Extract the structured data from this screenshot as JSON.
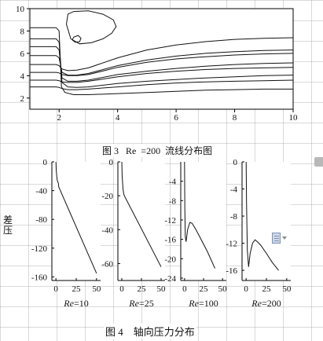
{
  "fig3": {
    "chart_data": {
      "type": "line",
      "title": "",
      "xlim": [
        1,
        10
      ],
      "ylim": [
        1,
        10
      ],
      "x_ticks": [
        "2",
        "4",
        "6",
        "8",
        "10"
      ],
      "y_ticks": [
        "2",
        "4",
        "6",
        "8",
        "10"
      ],
      "series": [
        {
          "x": [
            1.0,
            1.9,
            2.0,
            2.08,
            2.2,
            2.5,
            3.0,
            4.0,
            5.0,
            6.0,
            7.0,
            8.0,
            9.0,
            10.0
          ],
          "y": [
            8.3,
            8.3,
            8.0,
            3.0,
            2.5,
            2.3,
            2.3,
            2.4,
            2.5,
            2.6,
            2.7,
            2.75,
            2.8,
            2.8
          ]
        },
        {
          "x": [
            1.0,
            1.9,
            2.0,
            2.1,
            2.3,
            2.6,
            3.0,
            4.0,
            5.0,
            6.0,
            7.0,
            8.0,
            9.0,
            10.0
          ],
          "y": [
            7.3,
            7.3,
            7.0,
            3.4,
            3.0,
            2.95,
            3.0,
            3.3,
            3.5,
            3.65,
            3.8,
            3.9,
            4.0,
            4.05
          ]
        },
        {
          "x": [
            1.0,
            1.9,
            2.0,
            2.1,
            2.3,
            2.6,
            3.0,
            4.0,
            5.0,
            6.0,
            7.0,
            8.0,
            9.0,
            10.0
          ],
          "y": [
            6.6,
            6.6,
            6.3,
            3.8,
            3.5,
            3.5,
            3.6,
            4.1,
            4.4,
            4.65,
            4.85,
            5.0,
            5.1,
            5.15
          ]
        },
        {
          "x": [
            1.0,
            1.9,
            2.0,
            2.1,
            2.3,
            2.6,
            3.0,
            4.0,
            5.0,
            6.0,
            7.0,
            8.0,
            9.0,
            10.0
          ],
          "y": [
            5.8,
            5.8,
            5.6,
            4.3,
            4.05,
            4.05,
            4.2,
            4.9,
            5.4,
            5.75,
            6.0,
            6.15,
            6.25,
            6.3
          ]
        },
        {
          "x": [
            1.0,
            1.9,
            2.0,
            2.1,
            2.3,
            2.6,
            3.0,
            4.0,
            5.0,
            6.0,
            7.0,
            8.0,
            9.0,
            10.0
          ],
          "y": [
            5.0,
            5.0,
            4.9,
            4.6,
            4.45,
            4.5,
            4.7,
            5.6,
            6.3,
            6.75,
            7.05,
            7.25,
            7.35,
            7.4
          ]
        },
        {
          "x": [
            1.0,
            1.9,
            2.0,
            2.1,
            2.3,
            2.6,
            3.0,
            4.0,
            5.0,
            6.0,
            7.0,
            8.0,
            9.0,
            10.0
          ],
          "y": [
            4.3,
            4.3,
            4.25,
            4.1,
            4.0,
            4.0,
            4.1,
            4.75,
            5.2,
            5.5,
            5.7,
            5.85,
            5.95,
            6.0
          ]
        },
        {
          "x": [
            1.0,
            1.9,
            2.0,
            2.1,
            2.3,
            2.6,
            3.0,
            4.0,
            5.0,
            6.0,
            7.0,
            8.0,
            9.0,
            10.0
          ],
          "y": [
            3.6,
            3.6,
            3.55,
            3.45,
            3.4,
            3.4,
            3.5,
            3.9,
            4.2,
            4.4,
            4.55,
            4.65,
            4.7,
            4.75
          ]
        },
        {
          "x": [
            1.0,
            1.9,
            2.0,
            2.1,
            2.3,
            2.6,
            3.0,
            4.0,
            5.0,
            6.0,
            7.0,
            8.0,
            9.0,
            10.0
          ],
          "y": [
            3.0,
            3.0,
            2.95,
            2.85,
            2.75,
            2.75,
            2.8,
            3.0,
            3.2,
            3.35,
            3.45,
            3.5,
            3.55,
            3.6
          ]
        },
        {
          "x": [
            2.25,
            2.3,
            2.5,
            3.0,
            3.5,
            3.85,
            3.95,
            3.8,
            3.5,
            3.1,
            2.7,
            2.4,
            2.25
          ],
          "y": [
            8.6,
            9.5,
            9.75,
            9.8,
            9.5,
            9.0,
            8.4,
            7.8,
            7.3,
            6.95,
            6.85,
            7.3,
            8.6
          ]
        },
        {
          "x": [
            2.45,
            2.5,
            2.65,
            2.75,
            2.7,
            2.55,
            2.45
          ],
          "y": [
            7.2,
            7.45,
            7.6,
            7.35,
            7.05,
            7.0,
            7.2
          ]
        }
      ]
    },
    "caption": "图 3   Re  =200  流线分布图"
  },
  "fig4": {
    "ylabel": "差压",
    "caption": "图 4    轴向压力分布",
    "chart_data": [
      {
        "type": "line",
        "xlabel_italic": "Re",
        "xlabel_rest": "=10",
        "xlim": [
          -5,
          55
        ],
        "ylim": [
          -165,
          0
        ],
        "x_ticks": [
          "0",
          "25",
          "50"
        ],
        "y_ticks": [
          "0",
          "-40",
          "-80",
          "-120",
          "-160"
        ],
        "x": [
          0,
          0.4,
          1.5,
          3,
          3.5,
          50
        ],
        "y": [
          0,
          -12,
          -25,
          -30,
          -35,
          -155
        ]
      },
      {
        "type": "line",
        "xlabel_italic": "Re",
        "xlabel_rest": "=25",
        "xlim": [
          -5,
          55
        ],
        "ylim": [
          -70,
          0
        ],
        "x_ticks": [
          "0",
          "25",
          "50"
        ],
        "y_ticks": [
          "0",
          "-20",
          "-40",
          "-60"
        ],
        "x": [
          0,
          0.4,
          1.5,
          2.5,
          3.2,
          50
        ],
        "y": [
          0,
          -8,
          -16,
          -19,
          -20,
          -62
        ]
      },
      {
        "type": "line",
        "xlabel_italic": "Re",
        "xlabel_rest": "=100",
        "xlim": [
          -5,
          55
        ],
        "ylim": [
          -24.5,
          0
        ],
        "x_ticks": [
          "0",
          "25",
          "50"
        ],
        "y_ticks": [
          "-4",
          "-8",
          "-12",
          "-16",
          "-20",
          "-24"
        ],
        "x": [
          0,
          0.4,
          1,
          2,
          4,
          7,
          10,
          15,
          20,
          30,
          40
        ],
        "y": [
          0,
          -10,
          -15.5,
          -16.5,
          -14,
          -12.5,
          -12.7,
          -14,
          -15.5,
          -18.5,
          -22
        ]
      },
      {
        "type": "line",
        "xlabel_italic": "Re",
        "xlabel_rest": "=200",
        "xlim": [
          -5,
          55
        ],
        "ylim": [
          -17.5,
          0
        ],
        "x_ticks": [
          "0",
          "25",
          "50"
        ],
        "y_ticks": [
          "0",
          "-4",
          "-8",
          "-12",
          "-16"
        ],
        "x": [
          0,
          0.5,
          1.5,
          3,
          5,
          8,
          11,
          14,
          18,
          25,
          32,
          40
        ],
        "y": [
          0,
          -6,
          -13,
          -15.5,
          -13.5,
          -12,
          -11.5,
          -11.8,
          -12.3,
          -13.5,
          -14.8,
          -16
        ]
      }
    ]
  },
  "ui": {
    "side_button_icon": "document-icon",
    "dropdown_icon": "chevron-down-icon"
  }
}
